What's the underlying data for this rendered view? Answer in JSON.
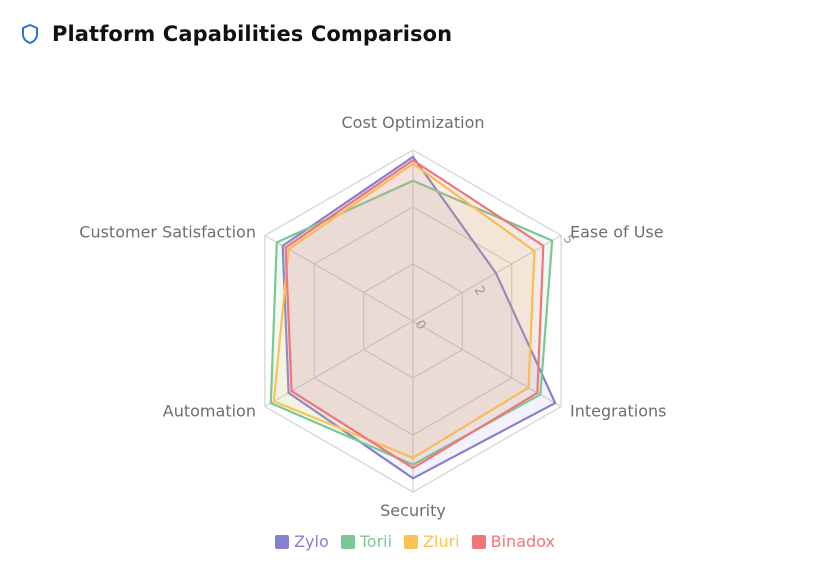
{
  "header": {
    "title": "Platform Capabilities Comparison",
    "icon": "shield-icon"
  },
  "chart_data": {
    "type": "radar",
    "title": "Platform Capabilities Comparison",
    "indicators": [
      "Cost Optimization",
      "Ease of Use",
      "Integrations",
      "Security",
      "Automation",
      "Customer Satisfaction"
    ],
    "max": 5,
    "ticks": [
      "0",
      "2",
      "5"
    ],
    "grid": true,
    "legend_position": "bottom",
    "series": [
      {
        "name": "Zylo",
        "color": "#8681cf",
        "values": [
          4.8,
          2.8,
          4.8,
          4.6,
          4.2,
          4.4
        ]
      },
      {
        "name": "Torii",
        "color": "#7bc796",
        "values": [
          4.1,
          4.7,
          4.3,
          4.2,
          4.8,
          4.6
        ]
      },
      {
        "name": "Zluri",
        "color": "#fbc355",
        "values": [
          4.6,
          4.1,
          3.9,
          4.0,
          4.7,
          4.2
        ]
      },
      {
        "name": "Binadox",
        "color": "#f2757a",
        "values": [
          4.7,
          4.4,
          4.2,
          4.3,
          4.1,
          4.3
        ]
      }
    ]
  }
}
